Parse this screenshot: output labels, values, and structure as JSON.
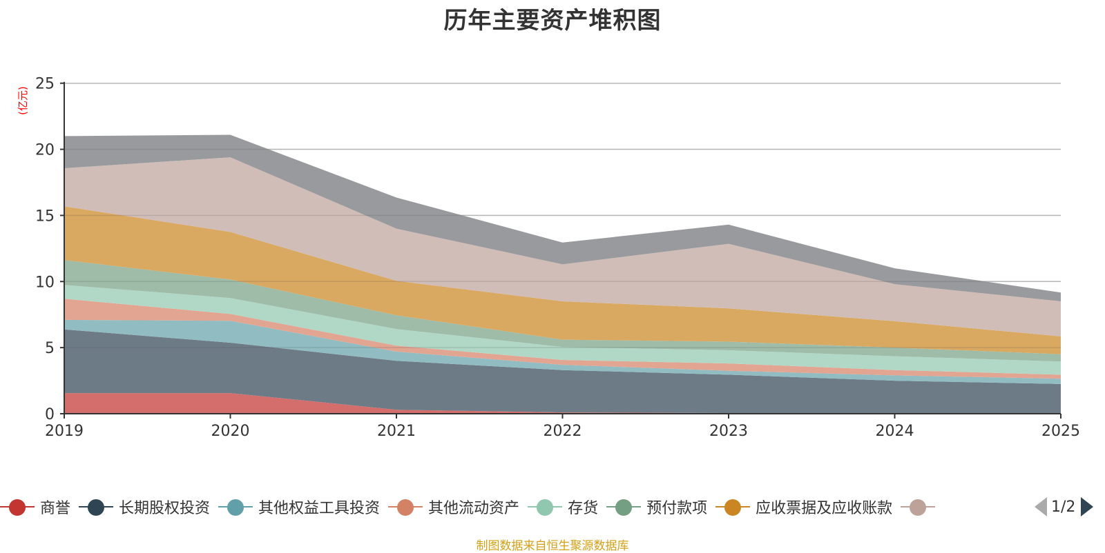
{
  "chart_data": {
    "type": "area",
    "stacked": true,
    "title": "历年主要资产堆积图",
    "ylabel": "(亿元)",
    "xlabel": "",
    "ylim": [
      0,
      25
    ],
    "yticks": [
      0,
      5,
      10,
      15,
      20,
      25
    ],
    "grid": true,
    "categories": [
      "2019",
      "2020",
      "2021",
      "2022",
      "2023",
      "2024",
      "2025"
    ],
    "series": [
      {
        "name": "商誉",
        "color": "#c23531",
        "fill": "#d46e6c",
        "values": [
          1.56,
          1.56,
          0.3,
          0.1,
          0.05,
          0.05,
          0.05
        ]
      },
      {
        "name": "长期股权投资",
        "color": "#2f4554",
        "fill": "#6d7b86",
        "values": [
          4.82,
          3.81,
          3.7,
          3.2,
          2.9,
          2.45,
          2.2
        ]
      },
      {
        "name": "其他权益工具投资",
        "color": "#61a0a8",
        "fill": "#90bcc2",
        "values": [
          0.72,
          1.66,
          0.7,
          0.4,
          0.3,
          0.4,
          0.4
        ]
      },
      {
        "name": "其他流动资产",
        "color": "#d48265",
        "fill": "#e1a592",
        "values": [
          1.6,
          0.52,
          0.45,
          0.37,
          0.55,
          0.4,
          0.3
        ]
      },
      {
        "name": "存货",
        "color": "#91c7ae",
        "fill": "#b1d8c6",
        "values": [
          1.04,
          1.2,
          1.25,
          0.98,
          1.0,
          1.05,
          1.0
        ]
      },
      {
        "name": "预付款项",
        "color": "#749f83",
        "fill": "#9ebca8",
        "values": [
          1.88,
          1.4,
          1.05,
          0.55,
          0.65,
          0.65,
          0.55
        ]
      },
      {
        "name": "应收票据及应收账款",
        "color": "#ca8622",
        "fill": "#d9a861",
        "values": [
          4.07,
          3.6,
          2.6,
          2.9,
          2.52,
          2.0,
          1.35
        ]
      },
      {
        "name": "",
        "color": "#bda29a",
        "fill": "#d0bdb7",
        "values": [
          2.88,
          5.65,
          3.95,
          2.8,
          4.88,
          2.8,
          2.65
        ]
      },
      {
        "name": "",
        "color": "#6e7074",
        "fill": "#999a9d",
        "values": [
          2.43,
          1.7,
          2.35,
          1.65,
          1.45,
          1.2,
          0.67
        ]
      }
    ],
    "legend_position": "bottom"
  },
  "legend": {
    "visible_items": [
      0,
      1,
      2,
      3,
      4,
      5,
      6,
      7
    ],
    "page_text": "1/2"
  },
  "footer": "制图数据来自恒生聚源数据库"
}
